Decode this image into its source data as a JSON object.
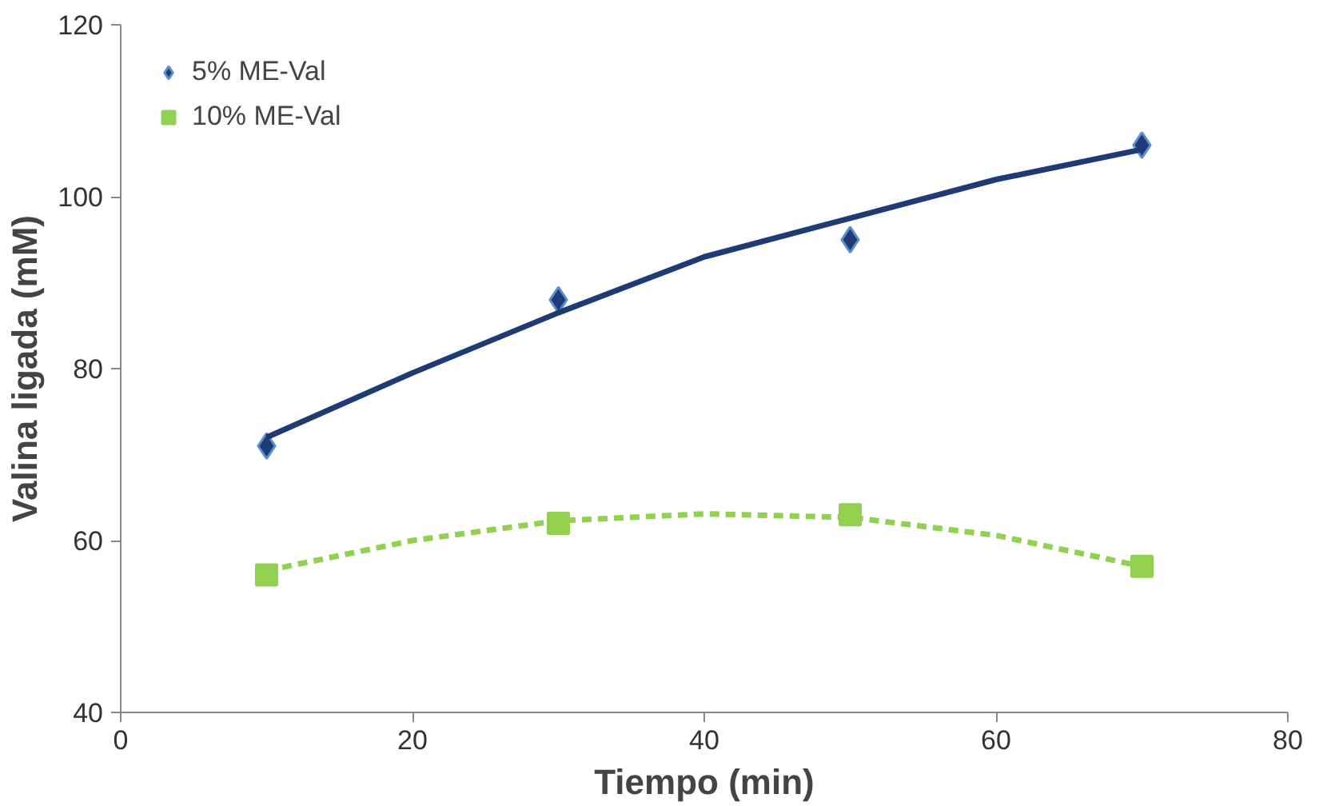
{
  "chart_data": {
    "type": "scatter",
    "xlabel": "Tiempo (min)",
    "ylabel": "Valina ligada (mM)",
    "xlim": [
      0,
      80
    ],
    "xticks": [
      0,
      20,
      40,
      60,
      80
    ],
    "ylim": [
      40,
      120
    ],
    "yticks": [
      40,
      60,
      80,
      100,
      120
    ],
    "grid": false,
    "legend": "top left",
    "series": [
      {
        "name": "5% ME-Val",
        "color": "#1f3b73",
        "marker": "diamond",
        "x": [
          10,
          30,
          50,
          70
        ],
        "values": [
          71,
          88,
          95,
          106
        ]
      },
      {
        "name": "10% ME-Val",
        "color": "#92d050",
        "marker": "square",
        "x": [
          10,
          30,
          50,
          70
        ],
        "values": [
          56,
          62,
          63,
          57
        ]
      },
      {
        "type": "line",
        "color": "#1f3b73",
        "line_style": "solid",
        "x": [
          10,
          20,
          30,
          40,
          50,
          60,
          70
        ],
        "values": [
          72,
          79.5,
          86.5,
          93,
          97.5,
          102,
          105.5
        ]
      },
      {
        "type": "line",
        "color": "#92d050",
        "line_style": "dashed",
        "x": [
          10,
          20,
          30,
          40,
          50,
          60,
          70
        ],
        "values": [
          56.5,
          60,
          62.3,
          63.1,
          62.7,
          60.6,
          57
        ]
      }
    ]
  }
}
